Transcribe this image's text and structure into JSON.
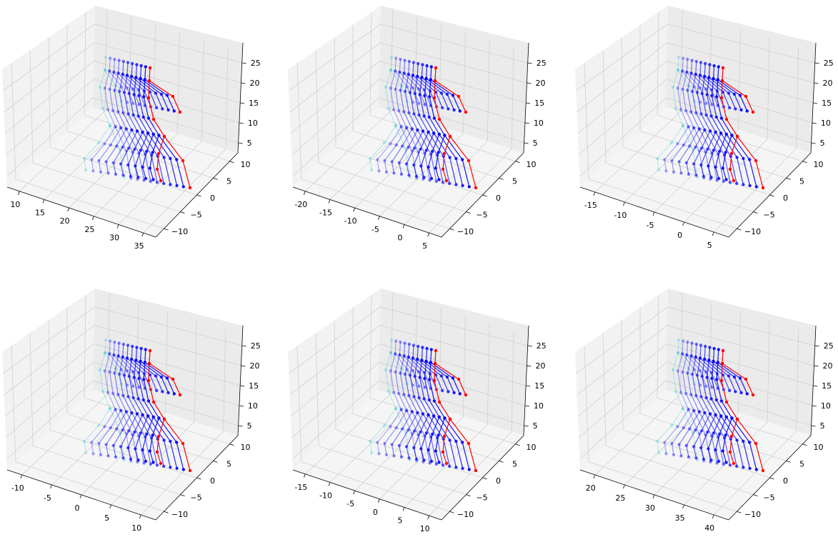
{
  "chart_data": [
    {
      "type": "scatter",
      "projection": "3d",
      "xlabel": "",
      "ylabel": "",
      "zlabel": "",
      "xticks": [
        10,
        15,
        20,
        25,
        30,
        35
      ],
      "yticks": [
        -10,
        -5,
        0,
        5,
        10
      ],
      "zticks": [
        5,
        10,
        15,
        20,
        25
      ],
      "grid": true,
      "legend": "none",
      "colors": [
        "#00bfbf",
        "#0000ff",
        "#ff0000"
      ]
    },
    {
      "type": "scatter",
      "projection": "3d",
      "xlabel": "",
      "ylabel": "",
      "zlabel": "",
      "xticks": [
        -20,
        -15,
        -10,
        -5,
        0,
        5
      ],
      "yticks": [
        -10,
        -5,
        0,
        5,
        10
      ],
      "zticks": [
        5,
        10,
        15,
        20,
        25
      ],
      "grid": true,
      "legend": "none",
      "colors": [
        "#00bfbf",
        "#0000ff",
        "#ff0000"
      ]
    },
    {
      "type": "scatter",
      "projection": "3d",
      "xlabel": "",
      "ylabel": "",
      "zlabel": "",
      "xticks": [
        -15,
        -10,
        -5,
        0,
        5
      ],
      "yticks": [
        -10,
        -5,
        0,
        5,
        10
      ],
      "zticks": [
        5,
        10,
        15,
        20,
        25
      ],
      "grid": true,
      "legend": "none",
      "colors": [
        "#00bfbf",
        "#0000ff",
        "#ff0000"
      ]
    },
    {
      "type": "scatter",
      "projection": "3d",
      "xlabel": "",
      "ylabel": "",
      "zlabel": "",
      "xticks": [
        -10,
        -5,
        0,
        5,
        10
      ],
      "yticks": [
        -10,
        -5,
        0,
        5,
        10
      ],
      "zticks": [
        5,
        10,
        15,
        20,
        25
      ],
      "grid": true,
      "legend": "none",
      "colors": [
        "#00bfbf",
        "#0000ff",
        "#ff0000"
      ]
    },
    {
      "type": "scatter",
      "projection": "3d",
      "xlabel": "",
      "ylabel": "",
      "zlabel": "",
      "xticks": [
        -15,
        -10,
        -5,
        0,
        5,
        10
      ],
      "yticks": [
        -10,
        -5,
        0,
        5,
        10
      ],
      "zticks": [
        5,
        10,
        15,
        20,
        25
      ],
      "grid": true,
      "legend": "none",
      "colors": [
        "#00bfbf",
        "#0000ff",
        "#ff0000"
      ]
    },
    {
      "type": "scatter",
      "projection": "3d",
      "xlabel": "",
      "ylabel": "",
      "zlabel": "",
      "xticks": [
        20,
        25,
        30,
        35,
        40
      ],
      "yticks": [
        -10,
        -5,
        0,
        5,
        10
      ],
      "zticks": [
        5,
        10,
        15,
        20,
        25
      ],
      "grid": true,
      "legend": "none",
      "colors": [
        "#00bfbf",
        "#0000ff",
        "#ff0000"
      ]
    }
  ]
}
